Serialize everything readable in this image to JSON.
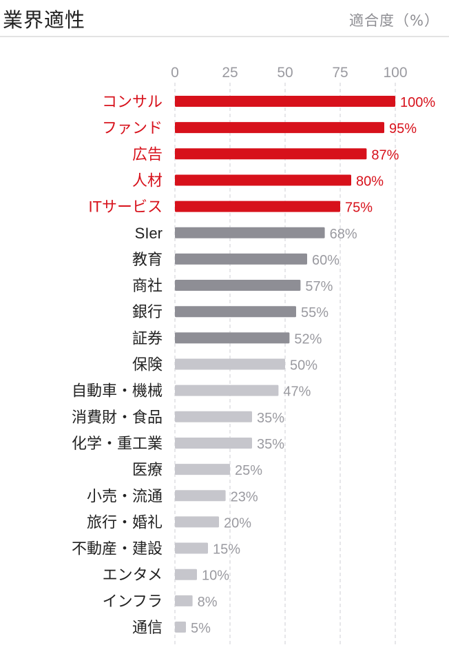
{
  "header": {
    "title": "業界適性",
    "unit": "適合度（%）"
  },
  "chart_data": {
    "type": "bar",
    "orientation": "horizontal",
    "title": "業界適性",
    "xlabel": "適合度（%）",
    "xlim": [
      0,
      100
    ],
    "ticks": [
      "0",
      "25",
      "50",
      "75",
      "100"
    ],
    "grid": "dashed vertical",
    "colors": {
      "top": "#d7111b",
      "mid": "#8e8e95",
      "low": "#c6c6cc",
      "axis_text": "#9a9aa0",
      "label_dark": "#222222"
    },
    "categories": [
      "コンサル",
      "ファンド",
      "広告",
      "人材",
      "ITサービス",
      "SIer",
      "教育",
      "商社",
      "銀行",
      "証券",
      "保険",
      "自動車・機械",
      "消費財・食品",
      "化学・重工業",
      "医療",
      "小売・流通",
      "旅行・婚礼",
      "不動産・建設",
      "エンタメ",
      "インフラ",
      "通信"
    ],
    "values": [
      100,
      95,
      87,
      80,
      75,
      68,
      60,
      57,
      55,
      52,
      50,
      47,
      35,
      35,
      25,
      23,
      20,
      15,
      10,
      8,
      5
    ],
    "value_labels": [
      "100%",
      "95%",
      "87%",
      "80%",
      "75%",
      "68%",
      "60%",
      "57%",
      "55%",
      "52%",
      "50%",
      "47%",
      "35%",
      "35%",
      "25%",
      "23%",
      "20%",
      "15%",
      "10%",
      "8%",
      "5%"
    ],
    "tiers": [
      "top",
      "top",
      "top",
      "top",
      "top",
      "mid",
      "mid",
      "mid",
      "mid",
      "mid",
      "low",
      "low",
      "low",
      "low",
      "low",
      "low",
      "low",
      "low",
      "low",
      "low",
      "low"
    ]
  }
}
